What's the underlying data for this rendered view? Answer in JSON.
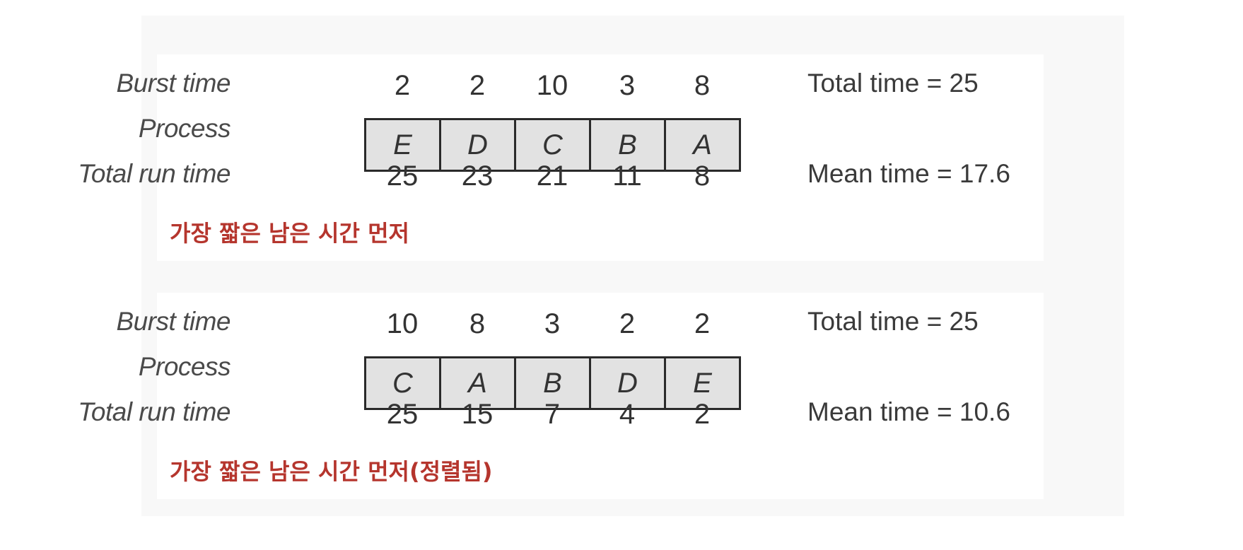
{
  "panels": [
    {
      "labels": {
        "burst": "Burst time",
        "process": "Process",
        "total": "Total run time"
      },
      "burst_times": [
        "2",
        "2",
        "10",
        "3",
        "8"
      ],
      "processes": [
        "E",
        "D",
        "C",
        "B",
        "A"
      ],
      "total_run_times": [
        "25",
        "23",
        "21",
        "11",
        "8"
      ],
      "total_time": "Total time = 25",
      "mean_time": "Mean time = 17.6",
      "caption": "가장 짧은 남은 시간 먼저"
    },
    {
      "labels": {
        "burst": "Burst time",
        "process": "Process",
        "total": "Total run time"
      },
      "burst_times": [
        "10",
        "8",
        "3",
        "2",
        "2"
      ],
      "processes": [
        "C",
        "A",
        "B",
        "D",
        "E"
      ],
      "total_run_times": [
        "25",
        "15",
        "7",
        "4",
        "2"
      ],
      "total_time": "Total time = 25",
      "mean_time": "Mean time = 10.6",
      "caption": "가장 짧은 남은 시간 먼저(정렬됨)"
    }
  ],
  "colors": {
    "caption": "#b5352d",
    "cell_fill": "#e2e2e2",
    "cell_border": "#2a2a2a"
  }
}
